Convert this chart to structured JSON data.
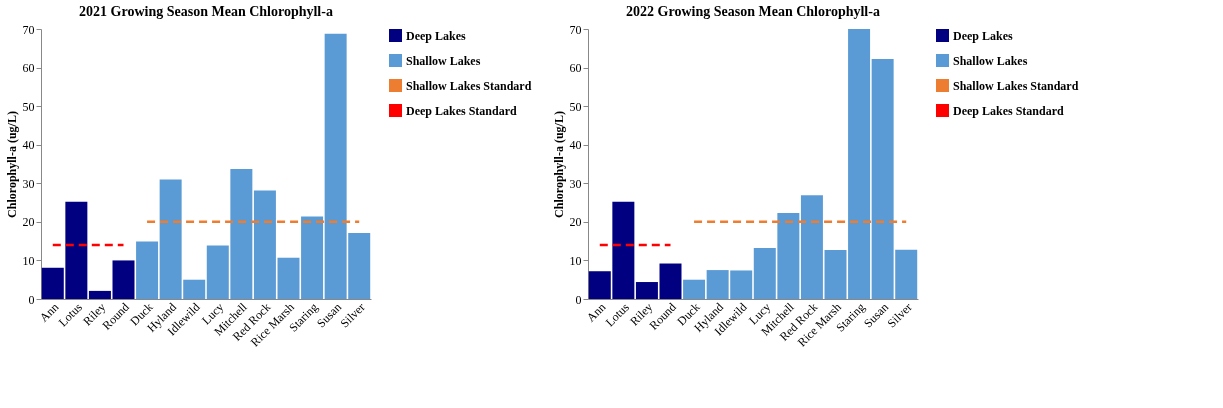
{
  "chart_data": [
    {
      "type": "bar",
      "title": "2021 Growing Season Mean Chlorophyll-a",
      "ylabel": "Chlorophyll-a  (ug/L)",
      "categories": [
        "Ann",
        "Lotus",
        "Riley",
        "Round",
        "Duck",
        "Hyland",
        "Idlewild",
        "Lucy",
        "Mitchell",
        "Red Rock",
        "Rice Marsh",
        "Staring",
        "Susan",
        "Silver"
      ],
      "series": [
        {
          "name": "Deep Lakes",
          "color": "#000080",
          "values": [
            8.1,
            25.2,
            2.1,
            10.0,
            null,
            null,
            null,
            null,
            null,
            null,
            null,
            null,
            null,
            null
          ]
        },
        {
          "name": "Shallow Lakes",
          "color": "#5b9bd5",
          "values": [
            null,
            null,
            null,
            null,
            14.9,
            31.0,
            5.0,
            13.9,
            33.7,
            28.1,
            10.7,
            21.4,
            68.8,
            17.1
          ]
        },
        {
          "name": "Shallow Lakes Standard",
          "type": "line",
          "line_style": "dashed",
          "color": "#ed7d31",
          "values": [
            null,
            null,
            null,
            null,
            20,
            20,
            20,
            20,
            20,
            20,
            20,
            20,
            20,
            20
          ]
        },
        {
          "name": "Deep Lakes Standard",
          "type": "line",
          "line_style": "dashed",
          "color": "#ff0000",
          "values": [
            14,
            14,
            14,
            14,
            null,
            null,
            null,
            null,
            null,
            null,
            null,
            null,
            null,
            null
          ]
        }
      ],
      "ylim": [
        0,
        70
      ],
      "yticks": [
        0,
        10,
        20,
        30,
        40,
        50,
        60,
        70
      ],
      "grid": false,
      "legend": "right"
    },
    {
      "type": "bar",
      "title": "2022 Growing Season Mean Chlorophyll-a",
      "ylabel": "Chlorophyll-a  (ug/L)",
      "categories": [
        "Ann",
        "Lotus",
        "Riley",
        "Round",
        "Duck",
        "Hyland",
        "Idlewild",
        "Lucy",
        "Mitchell",
        "Red Rock",
        "Rice Marsh",
        "Staring",
        "Susan",
        "Silver"
      ],
      "series": [
        {
          "name": "Deep Lakes",
          "color": "#000080",
          "values": [
            7.2,
            25.2,
            4.4,
            9.2,
            null,
            null,
            null,
            null,
            null,
            null,
            null,
            null,
            null,
            null
          ]
        },
        {
          "name": "Shallow Lakes",
          "color": "#5b9bd5",
          "values": [
            null,
            null,
            null,
            null,
            5.0,
            7.5,
            7.4,
            13.2,
            22.3,
            26.9,
            12.7,
            70.0,
            62.2,
            12.8
          ]
        },
        {
          "name": "Shallow Lakes Standard",
          "type": "line",
          "line_style": "dashed",
          "color": "#ed7d31",
          "values": [
            null,
            null,
            null,
            null,
            20,
            20,
            20,
            20,
            20,
            20,
            20,
            20,
            20,
            20
          ]
        },
        {
          "name": "Deep Lakes Standard",
          "type": "line",
          "line_style": "dashed",
          "color": "#ff0000",
          "values": [
            14,
            14,
            14,
            14,
            null,
            null,
            null,
            null,
            null,
            null,
            null,
            null,
            null,
            null
          ]
        }
      ],
      "ylim": [
        0,
        70
      ],
      "yticks": [
        0,
        10,
        20,
        30,
        40,
        50,
        60,
        70
      ],
      "grid": false,
      "legend": "right"
    }
  ]
}
